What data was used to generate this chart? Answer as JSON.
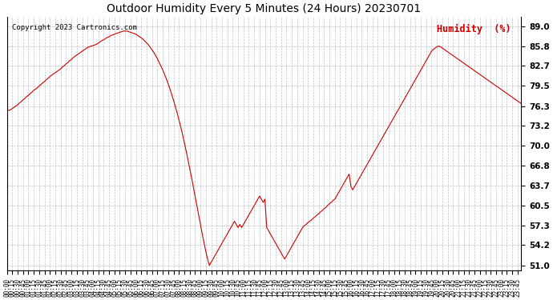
{
  "title": "Outdoor Humidity Every 5 Minutes (24 Hours) 20230701",
  "copyright": "Copyright 2023 Cartronics.com",
  "ylabel": "Humidity  (%)",
  "line_color": "#cc0000",
  "bg_color": "#ffffff",
  "grid_color": "#b0b0b0",
  "yticks": [
    51.0,
    54.2,
    57.3,
    60.5,
    63.7,
    66.8,
    70.0,
    73.2,
    76.3,
    79.5,
    82.7,
    85.8,
    89.0
  ],
  "ylim": [
    50.2,
    90.5
  ],
  "xlabel_fontsize": 5.5,
  "title_fontsize": 10,
  "ylabel_color": "#cc0000",
  "humidity_data": [
    75.5,
    75.6,
    75.7,
    75.9,
    76.1,
    76.3,
    76.5,
    76.8,
    77.0,
    77.3,
    77.5,
    77.8,
    78.0,
    78.3,
    78.5,
    78.8,
    79.0,
    79.2,
    79.5,
    79.7,
    80.0,
    80.2,
    80.5,
    80.7,
    81.0,
    81.2,
    81.4,
    81.6,
    81.8,
    82.0,
    82.2,
    82.5,
    82.7,
    83.0,
    83.2,
    83.5,
    83.7,
    84.0,
    84.2,
    84.4,
    84.6,
    84.8,
    85.0,
    85.2,
    85.4,
    85.6,
    85.7,
    85.8,
    85.9,
    86.0,
    86.1,
    86.3,
    86.5,
    86.7,
    86.8,
    87.0,
    87.2,
    87.3,
    87.5,
    87.6,
    87.7,
    87.8,
    87.9,
    88.0,
    88.1,
    88.2,
    88.2,
    88.2,
    88.1,
    88.0,
    87.9,
    87.8,
    87.7,
    87.5,
    87.3,
    87.1,
    86.9,
    86.6,
    86.3,
    86.0,
    85.6,
    85.2,
    84.8,
    84.3,
    83.8,
    83.2,
    82.6,
    82.0,
    81.3,
    80.6,
    79.8,
    79.0,
    78.1,
    77.2,
    76.2,
    75.2,
    74.1,
    73.0,
    71.8,
    70.5,
    69.2,
    67.8,
    66.4,
    65.0,
    63.5,
    62.0,
    60.5,
    59.0,
    57.5,
    56.0,
    54.6,
    53.2,
    52.0,
    51.0,
    51.5,
    52.0,
    52.5,
    53.0,
    53.5,
    54.0,
    54.5,
    55.0,
    55.5,
    56.0,
    56.5,
    57.0,
    57.5,
    58.0,
    57.5,
    57.0,
    57.5,
    57.0,
    57.5,
    58.0,
    58.5,
    59.0,
    59.5,
    60.0,
    60.5,
    61.0,
    61.5,
    62.0,
    61.5,
    61.0,
    61.5,
    57.0,
    56.5,
    56.0,
    55.5,
    55.0,
    54.5,
    54.0,
    53.5,
    53.0,
    52.5,
    52.0,
    52.5,
    53.0,
    53.5,
    54.0,
    54.5,
    55.0,
    55.5,
    56.0,
    56.5,
    57.0,
    57.3,
    57.5,
    57.8,
    58.0,
    58.2,
    58.5,
    58.7,
    59.0,
    59.2,
    59.5,
    59.7,
    60.0,
    60.2,
    60.5,
    60.8,
    61.0,
    61.3,
    61.5,
    62.0,
    62.5,
    63.0,
    63.5,
    64.0,
    64.5,
    65.0,
    65.5,
    63.5,
    63.0,
    63.5,
    64.0,
    64.5,
    65.0,
    65.5,
    66.0,
    66.5,
    67.0,
    67.5,
    68.0,
    68.5,
    69.0,
    69.5,
    70.0,
    70.5,
    71.0,
    71.5,
    72.0,
    72.5,
    73.0,
    73.5,
    74.0,
    74.5,
    75.0,
    75.5,
    76.0,
    76.5,
    77.0,
    77.5,
    78.0,
    78.5,
    79.0,
    79.5,
    80.0,
    80.5,
    81.0,
    81.5,
    82.0,
    82.5,
    83.0,
    83.5,
    84.0,
    84.5,
    85.0,
    85.3,
    85.5,
    85.7,
    85.8,
    85.7,
    85.5,
    85.3,
    85.1,
    84.9,
    84.7,
    84.5,
    84.3,
    84.1,
    83.9,
    83.7,
    83.5,
    83.3,
    83.1,
    82.9,
    82.7,
    82.5,
    82.3,
    82.1,
    81.9,
    81.7,
    81.5,
    81.3,
    81.1,
    80.9,
    80.7,
    80.5,
    80.3,
    80.1,
    79.9,
    79.7,
    79.5,
    79.3,
    79.1,
    78.9,
    78.7,
    78.5,
    78.3,
    78.1,
    77.9,
    77.7,
    77.5,
    77.3,
    77.1,
    76.9,
    76.7,
    76.5,
    76.3
  ]
}
